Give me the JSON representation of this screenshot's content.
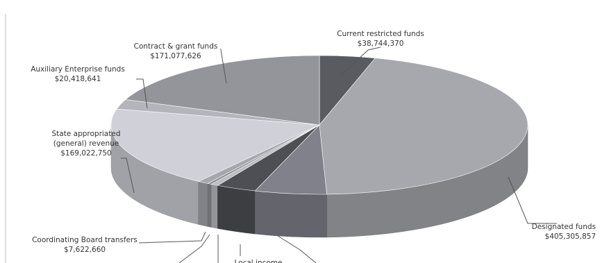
{
  "chart_data": {
    "type": "pie",
    "style": "3d-exploded-perspective",
    "slices": [
      {
        "label_lines": [
          "Current restricted funds"
        ],
        "value_label": "$38,744,370",
        "value": 38744370,
        "color": "#5a5b60"
      },
      {
        "label_lines": [
          "Designated funds"
        ],
        "value_label": "$405,305,857",
        "value": 405305857,
        "color": "#a7a8ad"
      },
      {
        "label_lines": [],
        "value_label": "",
        "value": 50000000,
        "color": "#80818a"
      },
      {
        "label_lines": [
          "Local income"
        ],
        "value_label": "",
        "value": 28000000,
        "color": "#4e4f54"
      },
      {
        "label_lines": [],
        "value_label": "",
        "value": 5000000,
        "color": "#bcbdc4"
      },
      {
        "label_lines": [],
        "value_label": "",
        "value": 3000000,
        "color": "#909196"
      },
      {
        "label_lines": [
          "Coordinating Board transfers"
        ],
        "value_label": "$7,622,660",
        "value": 7622660,
        "color": "#a6a7ae"
      },
      {
        "label_lines": [
          "State appropriated",
          "(general) revenue"
        ],
        "value_label": "$169,022,750",
        "value": 169022750,
        "color": "#cfd0d8"
      },
      {
        "label_lines": [
          "Auxiliary Enterprise funds"
        ],
        "value_label": "$20,418,641",
        "value": 20418641,
        "color": "#b4b5bc"
      },
      {
        "label_lines": [
          "Contract & grant funds"
        ],
        "value_label": "$171,077,626",
        "value": 171077626,
        "color": "#94959b"
      }
    ]
  }
}
